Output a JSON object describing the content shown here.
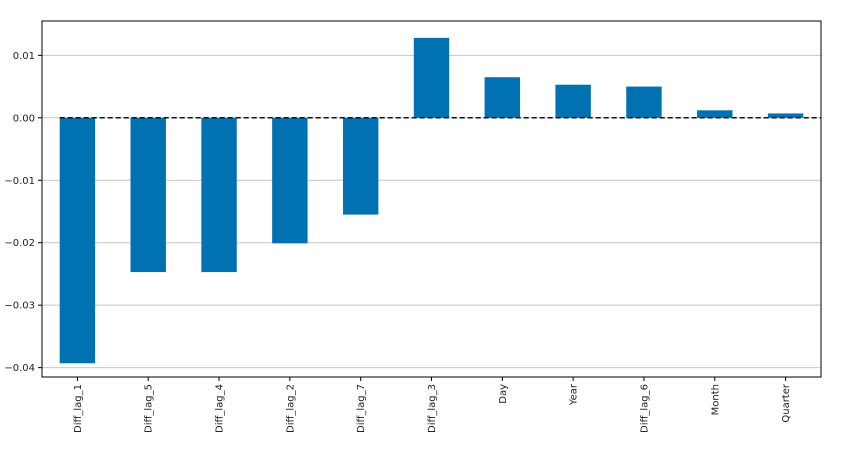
{
  "chart_data": {
    "type": "bar",
    "title": "",
    "xlabel": "",
    "ylabel": "",
    "categories": [
      "Diff_lag_1",
      "Diff_lag_5",
      "Diff_lag_4",
      "Diff_lag_2",
      "Diff_lag_7",
      "Diff_lag_3",
      "Day",
      "Year",
      "Diff_lag_6",
      "Month",
      "Quarter"
    ],
    "values": [
      -0.0393,
      -0.0247,
      -0.0247,
      -0.0201,
      -0.0155,
      0.0128,
      0.0065,
      0.0053,
      0.005,
      0.0012,
      0.0007
    ],
    "ylim": [
      -0.0415,
      0.0155
    ],
    "yticks": [
      0.01,
      0.0,
      -0.01,
      -0.02,
      -0.03,
      -0.04
    ],
    "ytick_labels": [
      "0.01",
      "0.00",
      "−0.01",
      "−0.02",
      "−0.03",
      "−0.04"
    ],
    "grid": "horizontal",
    "reference_line": {
      "y": 0,
      "style": "dashed"
    },
    "colors": {
      "bar": "#0072b2",
      "grid": "#c8c8c8",
      "axis": "#000000",
      "reference_line": "#111111"
    }
  }
}
